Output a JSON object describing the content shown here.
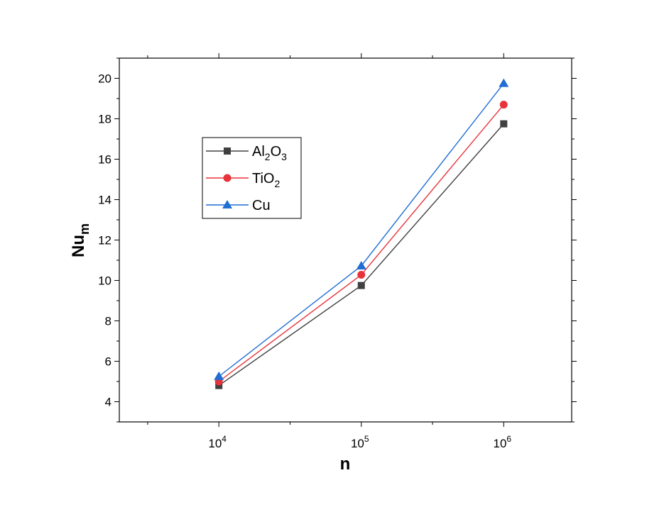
{
  "chart_data": {
    "type": "line",
    "x_scale": "log",
    "x": [
      10000,
      100000,
      1000000
    ],
    "xlim": [
      2000,
      3000000
    ],
    "ylim": [
      3,
      21
    ],
    "xlabel": "n",
    "ylabel": "Nu",
    "ylabel_subscript": "m",
    "x_ticks": [
      {
        "value": 10000,
        "base": "10",
        "exp": "4"
      },
      {
        "value": 100000,
        "base": "10",
        "exp": "5"
      },
      {
        "value": 1000000,
        "base": "10",
        "exp": "6"
      }
    ],
    "y_ticks": [
      4,
      6,
      8,
      10,
      12,
      14,
      16,
      18,
      20
    ],
    "legend_position": "upper-left",
    "series": [
      {
        "name": "Al2O3",
        "label_parts": [
          [
            "Al",
            ""
          ],
          [
            "2",
            "sub"
          ],
          [
            "O",
            ""
          ],
          [
            "3",
            "sub"
          ]
        ],
        "marker": "square",
        "color": "#404040",
        "values": [
          4.8,
          9.75,
          17.75
        ]
      },
      {
        "name": "TiO2",
        "label_parts": [
          [
            "TiO",
            ""
          ],
          [
            "2",
            "sub"
          ]
        ],
        "marker": "circle",
        "color": "#e8333a",
        "values": [
          5.0,
          10.28,
          18.7
        ]
      },
      {
        "name": "Cu",
        "label_parts": [
          [
            "Cu",
            ""
          ]
        ],
        "marker": "triangle",
        "color": "#1f6ed4",
        "values": [
          5.25,
          10.72,
          19.75
        ]
      }
    ]
  }
}
